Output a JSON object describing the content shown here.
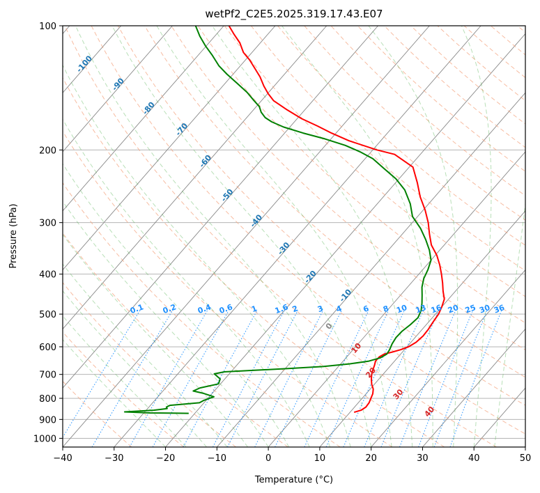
{
  "chart_data": {
    "type": "line",
    "subtype": "skew-T log-P diagram",
    "title": "wetPf2_C2E5.2025.319.17.43.E07",
    "xlabel": "Temperature (°C)",
    "ylabel": "Pressure (hPa)",
    "xlim": [
      -40,
      50
    ],
    "ylim": [
      1050,
      100
    ],
    "y_scale": "log",
    "x_ticks": [
      "−40",
      "−30",
      "−20",
      "−10",
      "0",
      "10",
      "20",
      "30",
      "40",
      "50"
    ],
    "y_ticks": [
      100,
      200,
      300,
      400,
      500,
      600,
      700,
      800,
      900,
      1000
    ],
    "grid": true,
    "series": [
      {
        "color": "#ff0000",
        "points": [
          [
            10.8,
            865
          ],
          [
            11.8,
            855
          ],
          [
            12.2,
            840
          ],
          [
            12.1,
            820
          ],
          [
            11.7,
            800
          ],
          [
            11.3,
            780
          ],
          [
            10.6,
            760
          ],
          [
            9.5,
            740
          ],
          [
            8.6,
            720
          ],
          [
            7.8,
            700
          ],
          [
            7.2,
            680
          ],
          [
            6.8,
            665
          ],
          [
            6.3,
            650
          ],
          [
            6.3,
            635
          ],
          [
            6.8,
            625
          ],
          [
            8,
            618
          ],
          [
            9.2,
            610
          ],
          [
            10.3,
            600
          ],
          [
            11,
            585
          ],
          [
            11.3,
            565
          ],
          [
            11.2,
            545
          ],
          [
            10.9,
            525
          ],
          [
            10.6,
            500
          ],
          [
            10,
            480
          ],
          [
            9.2,
            460
          ],
          [
            7.6,
            440
          ],
          [
            6.1,
            420
          ],
          [
            4.4,
            400
          ],
          [
            2.5,
            380
          ],
          [
            0.3,
            360
          ],
          [
            -2.5,
            340
          ],
          [
            -4.7,
            320
          ],
          [
            -6.9,
            300
          ],
          [
            -9.6,
            280
          ],
          [
            -12.8,
            260
          ],
          [
            -15.8,
            240
          ],
          [
            -19.3,
            220
          ],
          [
            -25,
            205
          ],
          [
            -29.2,
            200
          ],
          [
            -36.2,
            190
          ],
          [
            -40.9,
            182
          ],
          [
            -44.8,
            175
          ],
          [
            -49.1,
            168
          ],
          [
            -53.4,
            160
          ],
          [
            -57.6,
            152
          ],
          [
            -59.9,
            146
          ],
          [
            -62,
            140
          ],
          [
            -64.3,
            133
          ],
          [
            -67.1,
            126
          ],
          [
            -69.2,
            121
          ],
          [
            -71.7,
            116
          ],
          [
            -74,
            110
          ],
          [
            -76.5,
            105
          ],
          [
            -79,
            100
          ]
        ]
      },
      {
        "color": "#008000",
        "points": [
          [
            -21.2,
            870
          ],
          [
            -28.8,
            868
          ],
          [
            -33.9,
            863
          ],
          [
            -28.5,
            855
          ],
          [
            -26.2,
            847
          ],
          [
            -26.6,
            840
          ],
          [
            -26.2,
            832
          ],
          [
            -20.9,
            820
          ],
          [
            -20.5,
            810
          ],
          [
            -19.1,
            793
          ],
          [
            -21.7,
            778
          ],
          [
            -24.1,
            768
          ],
          [
            -23.3,
            755
          ],
          [
            -20.4,
            738
          ],
          [
            -20.9,
            718
          ],
          [
            -22.9,
            698
          ],
          [
            -21.3,
            690
          ],
          [
            -10,
            678
          ],
          [
            -3,
            670
          ],
          [
            1.8,
            660
          ],
          [
            5,
            650
          ],
          [
            6.7,
            638
          ],
          [
            7.3,
            625
          ],
          [
            7.1,
            610
          ],
          [
            6.6,
            590
          ],
          [
            6.3,
            570
          ],
          [
            6.4,
            550
          ],
          [
            6.9,
            530
          ],
          [
            7.2,
            510
          ],
          [
            6.6,
            490
          ],
          [
            5.5,
            470
          ],
          [
            4.2,
            450
          ],
          [
            2.8,
            430
          ],
          [
            1.7,
            410
          ],
          [
            1,
            390
          ],
          [
            0,
            370
          ],
          [
            -2,
            350
          ],
          [
            -4.5,
            330
          ],
          [
            -7.4,
            310
          ],
          [
            -11,
            290
          ],
          [
            -13.6,
            270
          ],
          [
            -17,
            250
          ],
          [
            -20.6,
            235
          ],
          [
            -24.6,
            222
          ],
          [
            -28.5,
            210
          ],
          [
            -32.2,
            202
          ],
          [
            -36.1,
            195
          ],
          [
            -41.2,
            188
          ],
          [
            -46.4,
            182
          ],
          [
            -51.2,
            176
          ],
          [
            -54.4,
            171
          ],
          [
            -56.4,
            167
          ],
          [
            -58.1,
            162
          ],
          [
            -59.4,
            157
          ],
          [
            -61.4,
            152
          ],
          [
            -64.2,
            145
          ],
          [
            -67.6,
            138
          ],
          [
            -71.2,
            131
          ],
          [
            -74.2,
            125
          ],
          [
            -77.2,
            118
          ],
          [
            -80.1,
            112
          ],
          [
            -82.9,
            106
          ],
          [
            -85.5,
            100
          ]
        ]
      }
    ],
    "dry_adiabats": [
      "-100",
      "-90",
      "-80",
      "-70",
      "-60",
      "-50",
      "-40",
      "-30",
      "-20",
      "-10"
    ],
    "moist_adiabats": [
      "0",
      "10",
      "20",
      "30",
      "40"
    ],
    "mixing_ratios": [
      "0.1",
      "0.2",
      "0.4",
      "0.6",
      "1",
      "1.6",
      "2",
      "3",
      "4",
      "6",
      "8",
      "10",
      "13",
      "16",
      "20",
      "25",
      "30",
      "36"
    ],
    "colors": {
      "temperature": "#ff0000",
      "dewpoint": "#008000",
      "isotherms": "#888888",
      "isobars": "#aaaaaa",
      "dry_adiabats": "#f4a582",
      "moist_adiabats": "#1f77b4",
      "mixing_ratio": "#1e90ff"
    }
  }
}
